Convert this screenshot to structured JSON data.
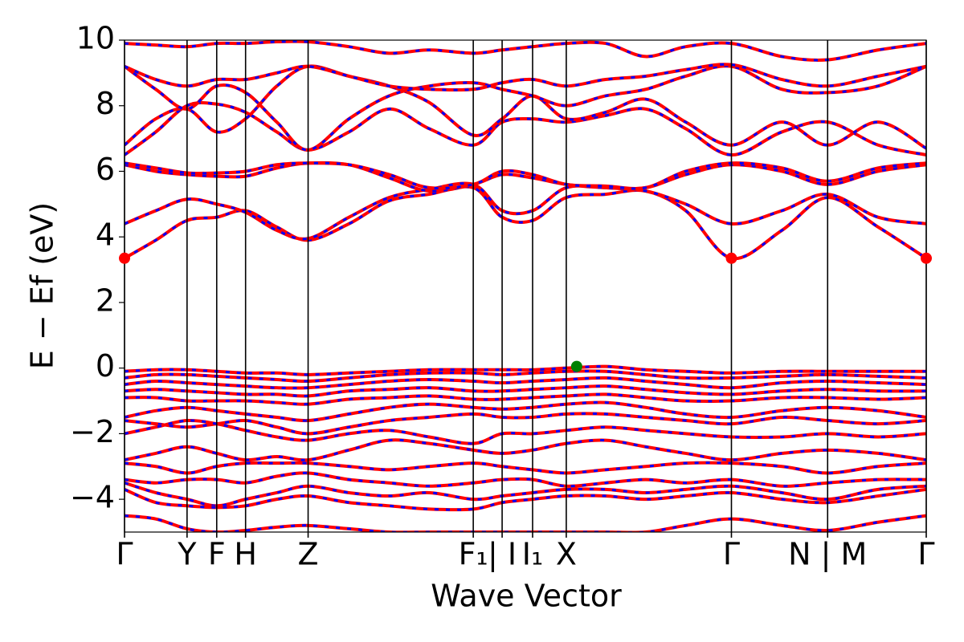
{
  "chart_data": {
    "type": "band-structure",
    "xlabel": "Wave Vector",
    "ylabel": "E − Ef (eV)",
    "xlim": [
      0,
      10
    ],
    "ylim": [
      -5,
      10
    ],
    "xticks": [
      {
        "value": 0,
        "label": "Γ"
      },
      {
        "value": 0.78,
        "label": "Y"
      },
      {
        "value": 1.15,
        "label": "F"
      },
      {
        "value": 1.51,
        "label": "H"
      },
      {
        "value": 2.29,
        "label": "Z"
      },
      {
        "value": 4.35,
        "label": "F₁"
      },
      {
        "value": 4.71,
        "label": "| I"
      },
      {
        "value": 5.09,
        "label": "I₁"
      },
      {
        "value": 5.51,
        "label": "X"
      },
      {
        "value": 7.57,
        "label": "Γ"
      },
      {
        "value": 8.77,
        "label": "N | M"
      },
      {
        "value": 10,
        "label": "Γ"
      }
    ],
    "yticks": [
      {
        "value": -4,
        "label": "−4"
      },
      {
        "value": -2,
        "label": "−2"
      },
      0,
      2,
      4,
      6,
      8,
      10
    ],
    "line_color": "#ff0000",
    "dash_color": "#0000ff",
    "x": [
      0,
      0.39,
      0.78,
      1.15,
      1.51,
      1.9,
      2.29,
      2.8,
      3.3,
      3.8,
      4.35,
      4.71,
      5.09,
      5.51,
      6.0,
      6.5,
      7.0,
      7.57,
      8.2,
      8.77,
      9.4,
      10
    ],
    "series": [
      {
        "values": [
          3.35,
          3.9,
          4.5,
          4.6,
          4.8,
          4.3,
          3.9,
          4.4,
          5.1,
          5.3,
          5.5,
          4.6,
          4.5,
          5.2,
          5.3,
          5.4,
          4.8,
          3.35,
          4.2,
          5.2,
          4.3,
          3.35
        ]
      },
      {
        "values": [
          4.4,
          4.8,
          5.15,
          5.0,
          4.75,
          4.2,
          3.95,
          4.6,
          5.2,
          5.45,
          5.6,
          4.8,
          4.8,
          5.5,
          5.5,
          5.4,
          5.0,
          4.4,
          4.8,
          5.3,
          4.6,
          4.4
        ]
      },
      {
        "values": [
          6.2,
          6.0,
          5.9,
          5.85,
          5.85,
          6.1,
          6.25,
          6.2,
          5.8,
          5.4,
          5.6,
          5.9,
          5.8,
          5.6,
          5.5,
          5.5,
          5.9,
          6.2,
          6.0,
          5.6,
          6.0,
          6.2
        ]
      },
      {
        "values": [
          6.25,
          6.1,
          5.95,
          5.95,
          6.0,
          6.2,
          6.25,
          6.2,
          5.9,
          5.5,
          5.6,
          6.0,
          5.9,
          5.6,
          5.55,
          5.5,
          6.0,
          6.25,
          6.1,
          5.7,
          6.1,
          6.25
        ]
      },
      {
        "values": [
          6.5,
          7.2,
          8.0,
          8.05,
          7.8,
          7.2,
          6.65,
          7.2,
          7.9,
          7.3,
          6.8,
          7.5,
          7.6,
          7.5,
          7.7,
          7.9,
          7.3,
          6.5,
          7.2,
          7.5,
          6.8,
          6.5
        ]
      },
      {
        "values": [
          6.8,
          7.6,
          7.9,
          7.2,
          7.6,
          8.6,
          9.2,
          8.9,
          8.6,
          8.1,
          7.1,
          7.6,
          8.3,
          7.6,
          7.8,
          8.2,
          7.5,
          6.8,
          7.5,
          6.8,
          7.5,
          6.7
        ]
      },
      {
        "values": [
          9.2,
          8.5,
          7.9,
          8.6,
          8.4,
          7.5,
          6.65,
          7.6,
          8.3,
          8.6,
          8.7,
          8.5,
          8.3,
          8.0,
          8.3,
          8.5,
          8.9,
          9.2,
          8.5,
          8.4,
          8.6,
          9.2
        ]
      },
      {
        "values": [
          9.2,
          8.8,
          8.6,
          8.8,
          8.8,
          9.0,
          9.2,
          8.9,
          8.6,
          8.5,
          8.5,
          8.7,
          8.8,
          8.6,
          8.8,
          8.9,
          9.1,
          9.25,
          8.8,
          8.6,
          8.9,
          9.2
        ]
      },
      {
        "values": [
          9.9,
          9.85,
          9.8,
          9.9,
          9.9,
          9.95,
          9.95,
          9.8,
          9.6,
          9.7,
          9.6,
          9.7,
          9.8,
          9.9,
          9.9,
          9.5,
          9.8,
          9.9,
          9.5,
          9.4,
          9.7,
          9.9
        ]
      },
      {
        "values": [
          -0.1,
          -0.05,
          -0.05,
          -0.1,
          -0.15,
          -0.15,
          -0.2,
          -0.15,
          -0.1,
          -0.05,
          -0.05,
          -0.05,
          -0.05,
          0.0,
          0.05,
          -0.05,
          -0.1,
          -0.15,
          -0.1,
          -0.1,
          -0.1,
          -0.1
        ]
      },
      {
        "values": [
          -0.3,
          -0.2,
          -0.2,
          -0.25,
          -0.3,
          -0.35,
          -0.4,
          -0.3,
          -0.2,
          -0.15,
          -0.15,
          -0.2,
          -0.15,
          -0.1,
          -0.1,
          -0.2,
          -0.3,
          -0.3,
          -0.25,
          -0.2,
          -0.25,
          -0.3
        ]
      },
      {
        "values": [
          -0.5,
          -0.4,
          -0.45,
          -0.5,
          -0.55,
          -0.6,
          -0.6,
          -0.5,
          -0.4,
          -0.35,
          -0.4,
          -0.45,
          -0.4,
          -0.35,
          -0.3,
          -0.4,
          -0.5,
          -0.6,
          -0.45,
          -0.4,
          -0.45,
          -0.5
        ]
      },
      {
        "values": [
          -0.7,
          -0.65,
          -0.7,
          -0.75,
          -0.8,
          -0.8,
          -0.85,
          -0.7,
          -0.65,
          -0.6,
          -0.7,
          -0.7,
          -0.65,
          -0.6,
          -0.55,
          -0.65,
          -0.75,
          -0.8,
          -0.7,
          -0.65,
          -0.7,
          -0.7
        ]
      },
      {
        "values": [
          -0.9,
          -0.9,
          -1.0,
          -1.0,
          -1.0,
          -1.05,
          -1.1,
          -0.95,
          -0.9,
          -0.85,
          -0.95,
          -0.95,
          -0.9,
          -0.85,
          -0.8,
          -0.9,
          -1.0,
          -1.0,
          -0.9,
          -0.9,
          -0.95,
          -0.9
        ]
      },
      {
        "values": [
          -1.5,
          -1.3,
          -1.2,
          -1.3,
          -1.4,
          -1.5,
          -1.6,
          -1.4,
          -1.2,
          -1.1,
          -1.2,
          -1.25,
          -1.2,
          -1.1,
          -1.05,
          -1.2,
          -1.4,
          -1.5,
          -1.3,
          -1.2,
          -1.3,
          -1.5
        ]
      },
      {
        "values": [
          -1.6,
          -1.7,
          -1.8,
          -1.7,
          -1.6,
          -1.8,
          -2.0,
          -1.8,
          -1.6,
          -1.5,
          -1.4,
          -1.5,
          -1.5,
          -1.4,
          -1.4,
          -1.5,
          -1.6,
          -1.7,
          -1.5,
          -1.6,
          -1.7,
          -1.6
        ]
      },
      {
        "values": [
          -2.0,
          -1.8,
          -1.6,
          -1.7,
          -1.9,
          -2.1,
          -2.2,
          -2.0,
          -1.9,
          -2.1,
          -2.3,
          -2.0,
          -2.0,
          -1.9,
          -1.8,
          -1.9,
          -2.0,
          -2.1,
          -2.1,
          -2.0,
          -2.1,
          -2.0
        ]
      },
      {
        "values": [
          -2.8,
          -2.6,
          -2.4,
          -2.6,
          -2.8,
          -2.7,
          -2.8,
          -2.5,
          -2.2,
          -2.3,
          -2.5,
          -2.6,
          -2.5,
          -2.3,
          -2.2,
          -2.4,
          -2.6,
          -2.8,
          -2.6,
          -2.5,
          -2.6,
          -2.8
        ]
      },
      {
        "values": [
          -2.9,
          -3.0,
          -3.2,
          -3.0,
          -2.9,
          -2.9,
          -2.9,
          -3.0,
          -3.1,
          -3.0,
          -2.9,
          -3.0,
          -3.1,
          -3.2,
          -3.1,
          -3.0,
          -2.9,
          -2.9,
          -3.0,
          -3.2,
          -3.0,
          -2.9
        ]
      },
      {
        "values": [
          -3.4,
          -3.5,
          -3.4,
          -3.4,
          -3.5,
          -3.3,
          -3.2,
          -3.4,
          -3.5,
          -3.6,
          -3.5,
          -3.4,
          -3.4,
          -3.6,
          -3.5,
          -3.4,
          -3.5,
          -3.4,
          -3.6,
          -3.5,
          -3.4,
          -3.4
        ]
      },
      {
        "values": [
          -3.5,
          -3.8,
          -4.0,
          -4.2,
          -4.0,
          -3.8,
          -3.6,
          -3.8,
          -3.9,
          -3.8,
          -4.0,
          -3.9,
          -3.8,
          -3.7,
          -3.7,
          -3.8,
          -3.7,
          -3.6,
          -3.8,
          -4.0,
          -3.7,
          -3.6
        ]
      },
      {
        "values": [
          -3.7,
          -4.1,
          -4.2,
          -4.25,
          -4.2,
          -4.0,
          -3.9,
          -4.1,
          -4.2,
          -4.3,
          -4.3,
          -4.1,
          -4.0,
          -3.9,
          -3.9,
          -4.0,
          -3.9,
          -3.8,
          -4.0,
          -4.1,
          -3.9,
          -3.7
        ]
      },
      {
        "values": [
          -4.5,
          -4.6,
          -4.9,
          -5.0,
          -4.95,
          -4.85,
          -4.8,
          -4.9,
          -5.0,
          -5.0,
          -5.0,
          -5.0,
          -5.0,
          -5.0,
          -5.0,
          -5.0,
          -4.8,
          -4.6,
          -4.8,
          -4.95,
          -4.7,
          -4.5
        ]
      }
    ],
    "markers": [
      {
        "x": 0,
        "y": 3.35,
        "color": "#ff0000"
      },
      {
        "x": 7.57,
        "y": 3.35,
        "color": "#ff0000"
      },
      {
        "x": 10,
        "y": 3.35,
        "color": "#ff0000"
      },
      {
        "x": 5.64,
        "y": 0.05,
        "color": "#008000"
      }
    ]
  }
}
